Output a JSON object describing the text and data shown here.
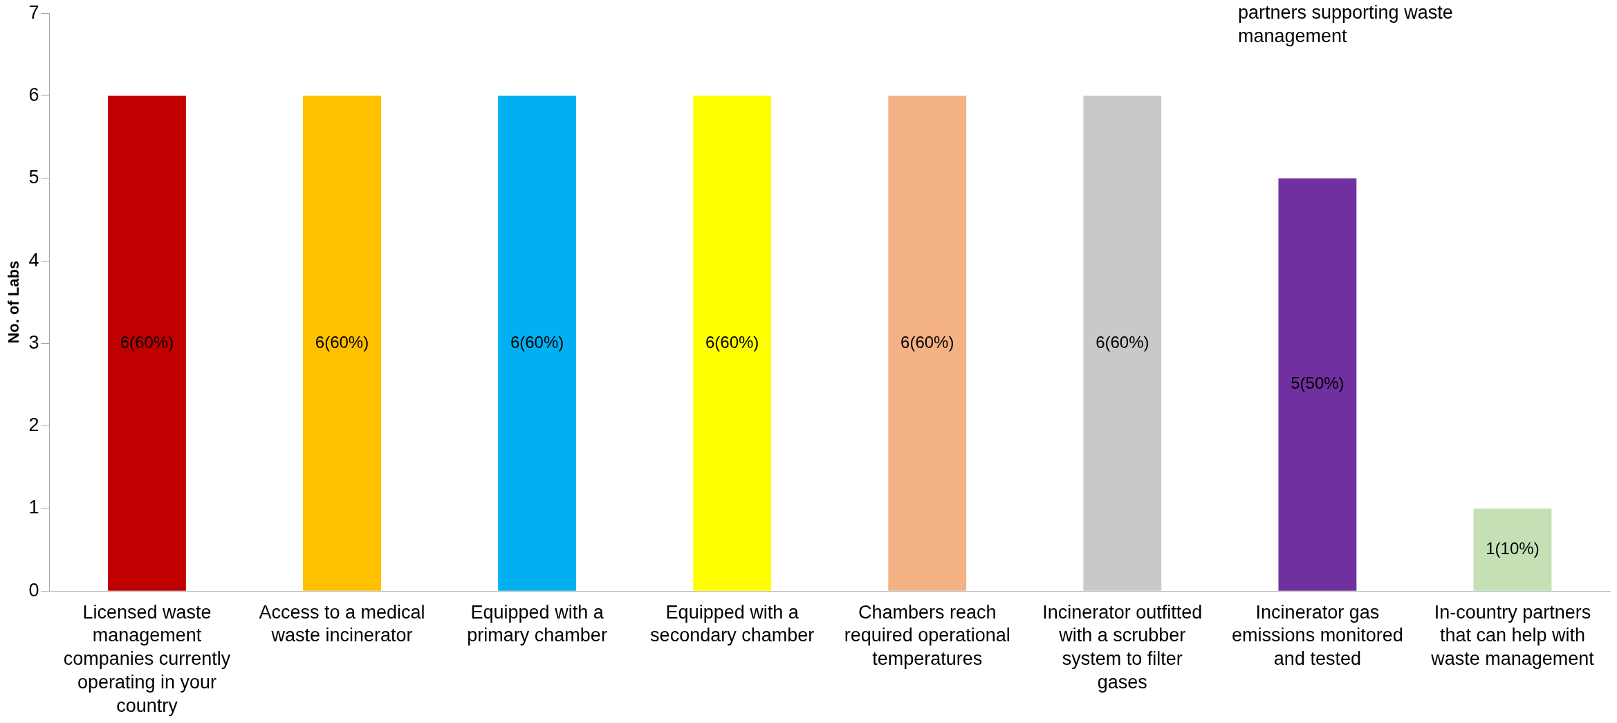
{
  "chart_data": {
    "type": "bar",
    "ylabel": "No. of Labs",
    "categories": [
      "Licensed waste management companies currently operating in your country",
      "Access to a medical waste incinerator",
      "Equipped with a primary chamber",
      "Equipped with a secondary chamber",
      "Chambers reach required operational temperatures",
      "Incinerator outfitted with a scrubber system to filter gases",
      "Incinerator gas emissions monitored and tested",
      "In-country partners that can help with waste management"
    ],
    "values": [
      6,
      6,
      6,
      6,
      6,
      6,
      5,
      1
    ],
    "colors": [
      "#c00000",
      "#ffc000",
      "#00b0f0",
      "#ffff00",
      "#f4b183",
      "#c9c9c9",
      "#7030a0",
      "#c5e0b4"
    ],
    "value_labels": [
      "6(60%)",
      "6(60%)",
      "6(60%)",
      "6(60%)",
      "6(60%)",
      "6(60%)",
      "5(50%)",
      "1(10%)"
    ],
    "ylim": [
      0,
      7
    ],
    "yticks": [
      0,
      1,
      2,
      3,
      4,
      5,
      6,
      7
    ],
    "grid": false,
    "legend": false,
    "annotations": [
      "partners supporting waste management"
    ]
  }
}
